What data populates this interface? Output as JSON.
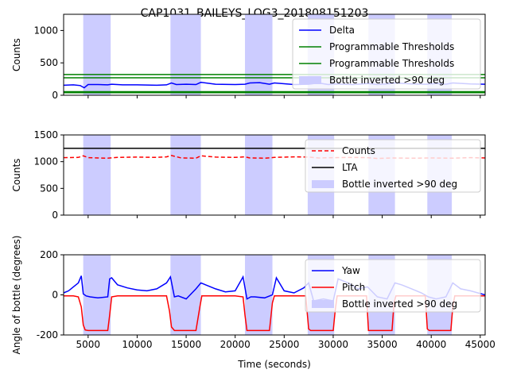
{
  "chart_data": [
    {
      "type": "line",
      "title": "CAP1031_BAILEYS_LOG3_201808151203",
      "ylabel": "Counts",
      "xlim": [
        2500,
        45500
      ],
      "ylim": [
        0,
        1250
      ],
      "yticks": [
        0,
        500,
        1000
      ],
      "series": [
        {
          "name": "Delta",
          "color": "#0000ff",
          "x": [
            2500,
            3500,
            4200,
            4600,
            5000,
            6000,
            7000,
            7400,
            8500,
            10000,
            12000,
            13000,
            13500,
            14000,
            15000,
            16000,
            16500,
            18000,
            20000,
            21000,
            21500,
            22500,
            23500,
            24000,
            26000,
            27500,
            28500,
            29500,
            30200,
            32000,
            33600,
            34500,
            35500,
            36300,
            38000,
            39500,
            40500,
            41500,
            42200,
            44000,
            45500
          ],
          "y": [
            155,
            160,
            150,
            115,
            165,
            165,
            160,
            170,
            160,
            160,
            155,
            160,
            190,
            165,
            170,
            165,
            200,
            170,
            165,
            170,
            190,
            195,
            170,
            190,
            165,
            170,
            190,
            165,
            175,
            165,
            180,
            165,
            175,
            190,
            175,
            170,
            180,
            170,
            190,
            175,
            170
          ]
        },
        {
          "name": "Programmable Thresholds",
          "color": "#008000",
          "y_const": 320
        },
        {
          "name": "Programmable Thresholds",
          "color": "#008000",
          "y_const": 55
        },
        {
          "name": "Bottle inverted >90 deg",
          "color": "#ccccff",
          "kind": "span"
        }
      ],
      "extra_lines": [
        {
          "color": "#008000",
          "y_const": 270
        },
        {
          "color": "#008000",
          "y_const": 40
        }
      ]
    },
    {
      "type": "line",
      "ylabel": "Counts",
      "xlim": [
        2500,
        45500
      ],
      "ylim": [
        0,
        1500
      ],
      "yticks": [
        0,
        500,
        1000,
        1500
      ],
      "series": [
        {
          "name": "Counts",
          "color": "#ff0000",
          "style": "dashed",
          "x": [
            2500,
            4000,
            4500,
            5000,
            6000,
            7000,
            8000,
            10000,
            12000,
            13000,
            13500,
            14500,
            16000,
            16500,
            18000,
            20000,
            21000,
            21500,
            23000,
            24000,
            26000,
            27500,
            28500,
            30000,
            32000,
            33500,
            34500,
            36000,
            38000,
            40000,
            42000,
            44000,
            45500
          ],
          "y": [
            1075,
            1080,
            1110,
            1075,
            1070,
            1065,
            1080,
            1085,
            1080,
            1090,
            1115,
            1070,
            1065,
            1110,
            1085,
            1080,
            1090,
            1070,
            1065,
            1080,
            1090,
            1085,
            1070,
            1075,
            1080,
            1075,
            1060,
            1070,
            1065,
            1070,
            1065,
            1075,
            1070
          ]
        },
        {
          "name": "LTA",
          "color": "#000000",
          "y_const": 1250
        },
        {
          "name": "Bottle inverted >90 deg",
          "color": "#ccccff",
          "kind": "span"
        }
      ]
    },
    {
      "type": "line",
      "ylabel": "Angle of bottle (degrees)",
      "xlabel": "Time (seconds)",
      "xlim": [
        2500,
        45500
      ],
      "ylim": [
        -200,
        200
      ],
      "yticks": [
        -200,
        0,
        200
      ],
      "xticks": [
        5000,
        10000,
        15000,
        20000,
        25000,
        30000,
        35000,
        40000,
        45000
      ],
      "series": [
        {
          "name": "Yaw",
          "color": "#0000ff",
          "x": [
            2500,
            3000,
            3500,
            4000,
            4300,
            4500,
            4800,
            5200,
            6000,
            7000,
            7200,
            7400,
            8000,
            9000,
            10000,
            11000,
            12000,
            13000,
            13400,
            13800,
            14200,
            15000,
            16000,
            16500,
            17000,
            18000,
            19000,
            20000,
            20800,
            21200,
            21600,
            22000,
            23000,
            23800,
            24200,
            25000,
            26000,
            27000,
            27500,
            28000,
            29000,
            30000,
            30500,
            31500,
            32500,
            33500,
            34500,
            35500,
            36300,
            37000,
            38000,
            39000,
            39700,
            40500,
            41500,
            42200,
            43000,
            44000,
            45500
          ],
          "y": [
            10,
            20,
            40,
            60,
            95,
            5,
            -5,
            -10,
            -15,
            -10,
            80,
            85,
            50,
            35,
            25,
            20,
            30,
            60,
            90,
            -10,
            -5,
            -20,
            30,
            60,
            50,
            30,
            15,
            20,
            90,
            -20,
            -10,
            -10,
            -15,
            0,
            85,
            20,
            10,
            35,
            60,
            -30,
            -20,
            -30,
            80,
            60,
            30,
            40,
            -10,
            -20,
            60,
            50,
            30,
            10,
            -10,
            -20,
            -10,
            60,
            30,
            20,
            0
          ]
        },
        {
          "name": "Pitch",
          "color": "#ff0000",
          "x": [
            2500,
            3500,
            4000,
            4300,
            4500,
            4700,
            5000,
            7000,
            7200,
            7400,
            8000,
            10000,
            12000,
            13000,
            13300,
            13500,
            13800,
            16000,
            16400,
            16600,
            18000,
            20000,
            20800,
            21000,
            21200,
            23500,
            23800,
            24000,
            26000,
            27200,
            27500,
            27700,
            30000,
            30200,
            30400,
            32000,
            33400,
            33600,
            33800,
            36000,
            36200,
            36400,
            38000,
            39400,
            39600,
            39800,
            42000,
            42200,
            42400,
            44000,
            45500
          ],
          "y": [
            -5,
            -5,
            -10,
            -60,
            -150,
            -175,
            -178,
            -178,
            -100,
            -10,
            -5,
            -5,
            -5,
            -5,
            -80,
            -160,
            -178,
            -178,
            -60,
            -5,
            -5,
            -5,
            -10,
            -100,
            -178,
            -178,
            -40,
            -5,
            -5,
            -5,
            -170,
            -178,
            -178,
            -80,
            -5,
            -5,
            -5,
            -178,
            -178,
            -178,
            -40,
            -5,
            -5,
            -5,
            -170,
            -178,
            -178,
            -60,
            -5,
            -5,
            -5
          ]
        },
        {
          "name": "Bottle inverted >90 deg",
          "color": "#ccccff",
          "kind": "span"
        }
      ]
    }
  ],
  "inverted_spans": [
    [
      4500,
      7300
    ],
    [
      13400,
      16500
    ],
    [
      21000,
      23800
    ],
    [
      27400,
      30100
    ],
    [
      33600,
      36300
    ],
    [
      39600,
      42100
    ]
  ]
}
